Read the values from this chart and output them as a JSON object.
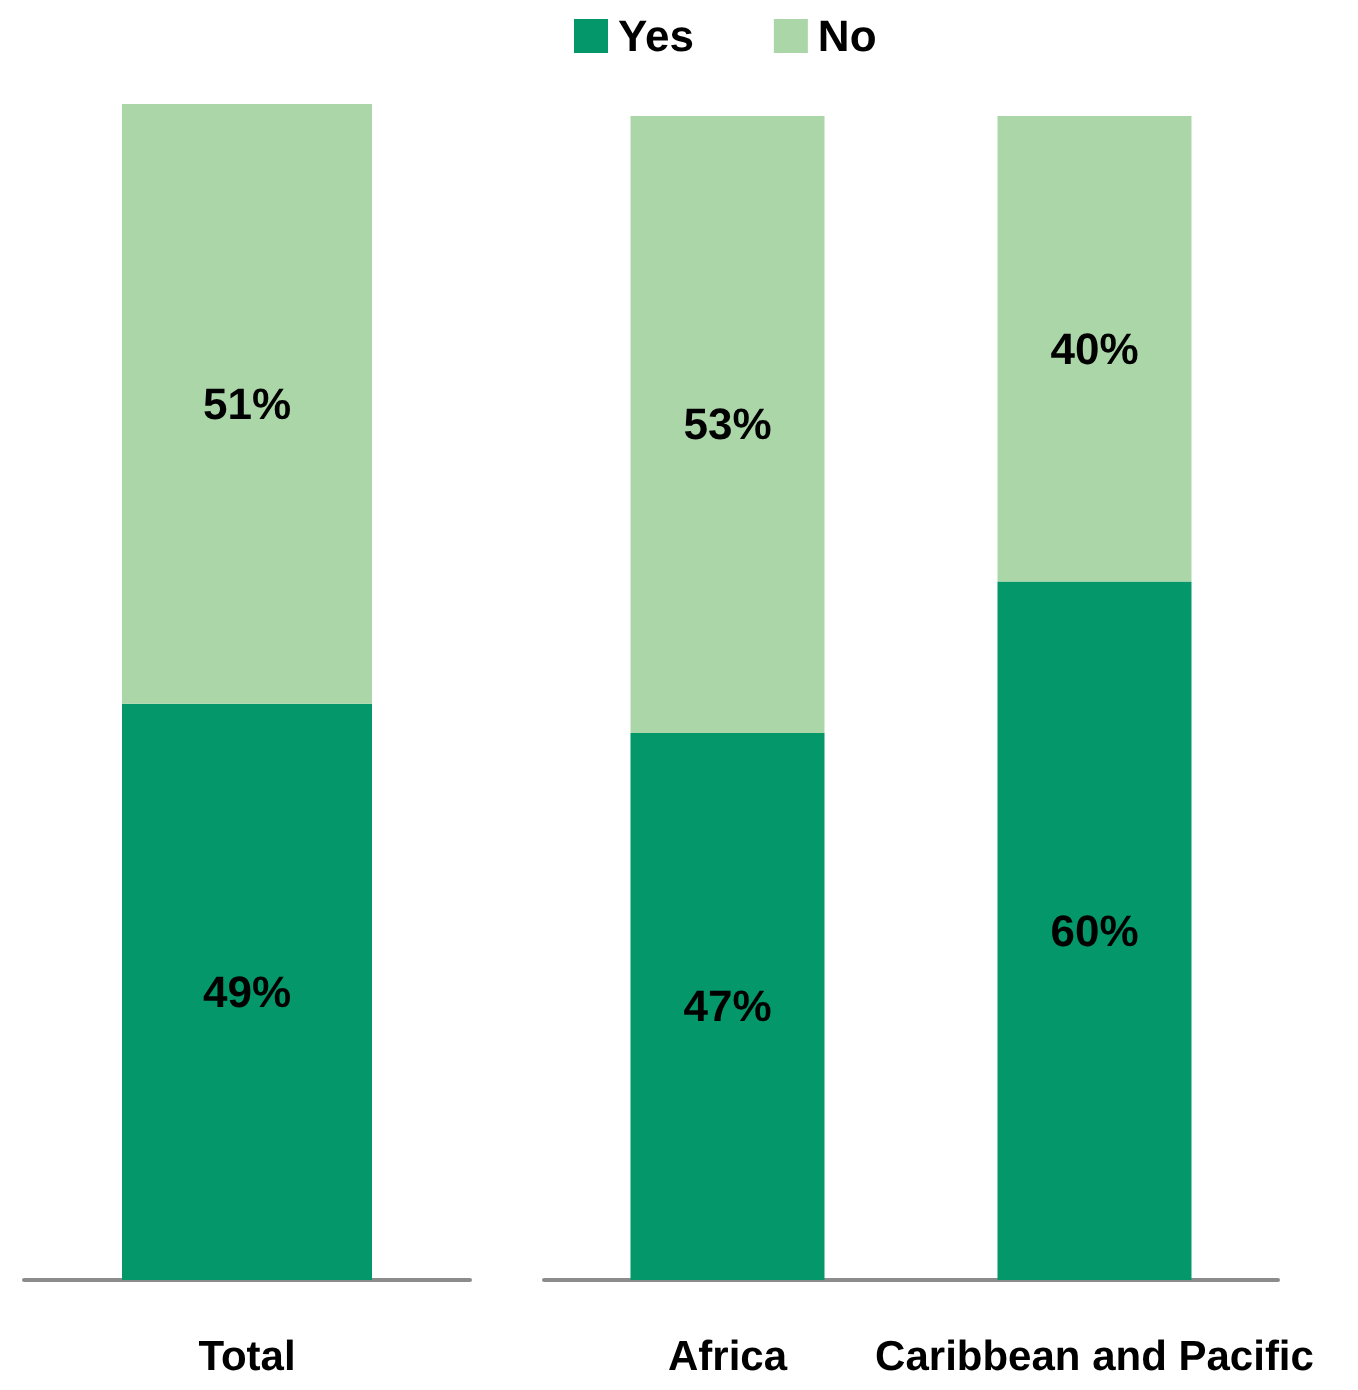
{
  "chart_data": [
    {
      "type": "bar",
      "stacked": true,
      "legend": false,
      "categories": [
        "Total"
      ],
      "series": [
        {
          "color": "#03976a",
          "values": [
            49
          ],
          "value_labels": [
            "49%"
          ]
        },
        {
          "color": "#abd7a8",
          "values": [
            51
          ],
          "value_labels": [
            "51%"
          ]
        }
      ]
    },
    {
      "type": "bar",
      "stacked": true,
      "legend": "top left",
      "categories": [
        "Africa",
        "Caribbean and Pacific"
      ],
      "series": [
        {
          "name": "Yes",
          "color": "#03976a",
          "values": [
            47,
            60
          ],
          "value_labels": [
            "47%",
            "60%"
          ]
        },
        {
          "name": "No",
          "color": "#abd7a8",
          "values": [
            53,
            40
          ],
          "value_labels": [
            "53%",
            "40%"
          ]
        }
      ]
    }
  ]
}
